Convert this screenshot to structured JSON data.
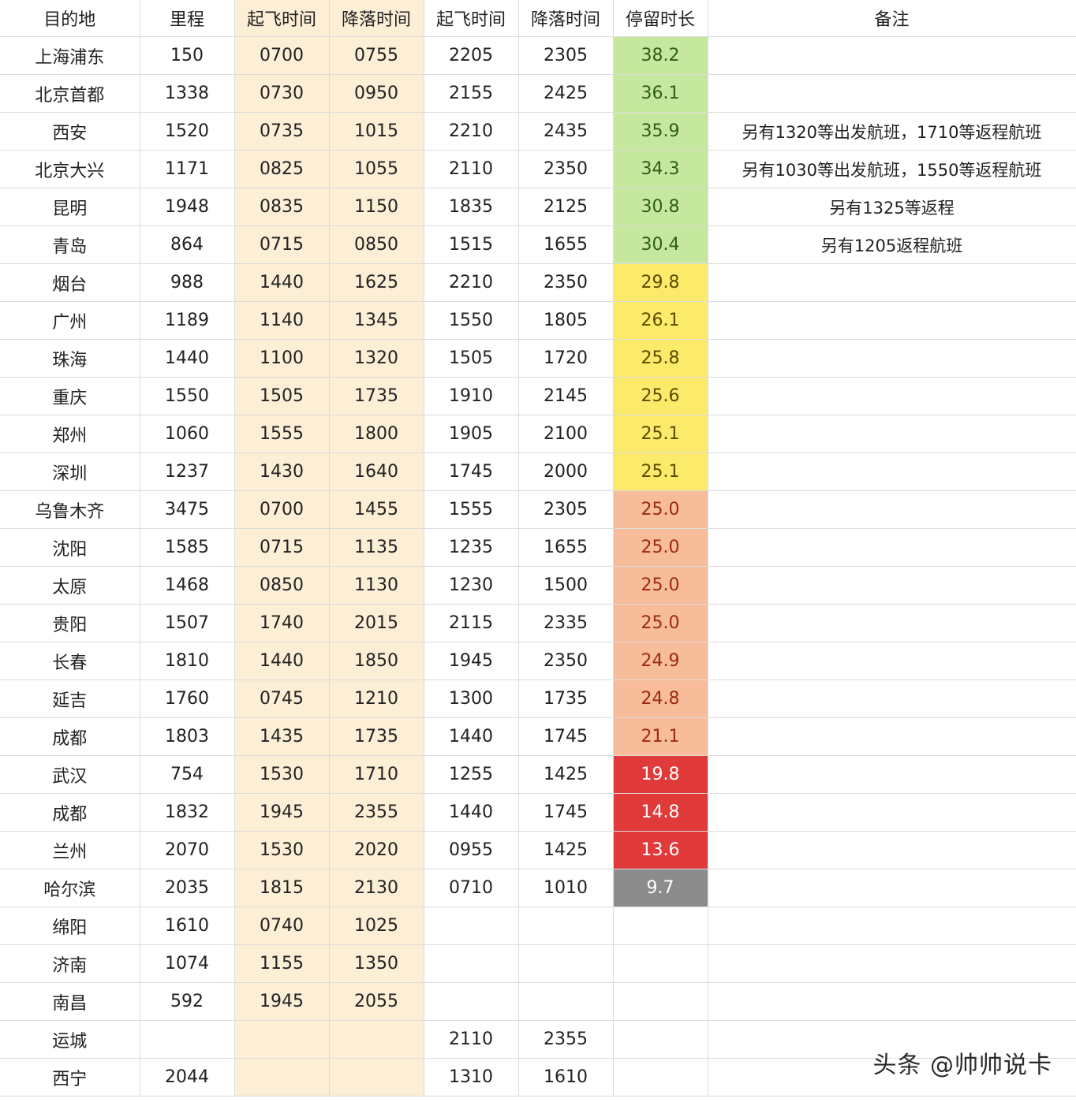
{
  "colors": {
    "green": "#c5e79e",
    "yellow": "#fcea6a",
    "orange": "#f7bd9b",
    "red": "#e03a3a",
    "gray": "#8c8c8c",
    "shade": "#fdeed6"
  },
  "headers": [
    "目的地",
    "里程",
    "起飞时间",
    "降落时间",
    "起飞时间",
    "降落时间",
    "停留时长",
    "备注"
  ],
  "rows": [
    {
      "dest": "上海浦东",
      "miles": "150",
      "dep1": "0700",
      "arr1": "0755",
      "dep2": "2205",
      "arr2": "2305",
      "stay": "38.2",
      "level": "green",
      "note": ""
    },
    {
      "dest": "北京首都",
      "miles": "1338",
      "dep1": "0730",
      "arr1": "0950",
      "dep2": "2155",
      "arr2": "2425",
      "stay": "36.1",
      "level": "green",
      "note": ""
    },
    {
      "dest": "西安",
      "miles": "1520",
      "dep1": "0735",
      "arr1": "1015",
      "dep2": "2210",
      "arr2": "2435",
      "stay": "35.9",
      "level": "green",
      "note": "另有1320等出发航班，1710等返程航班"
    },
    {
      "dest": "北京大兴",
      "miles": "1171",
      "dep1": "0825",
      "arr1": "1055",
      "dep2": "2110",
      "arr2": "2350",
      "stay": "34.3",
      "level": "green",
      "note": "另有1030等出发航班，1550等返程航班"
    },
    {
      "dest": "昆明",
      "miles": "1948",
      "dep1": "0835",
      "arr1": "1150",
      "dep2": "1835",
      "arr2": "2125",
      "stay": "30.8",
      "level": "green",
      "note": "另有1325等返程"
    },
    {
      "dest": "青岛",
      "miles": "864",
      "dep1": "0715",
      "arr1": "0850",
      "dep2": "1515",
      "arr2": "1655",
      "stay": "30.4",
      "level": "green",
      "note": "另有1205返程航班"
    },
    {
      "dest": "烟台",
      "miles": "988",
      "dep1": "1440",
      "arr1": "1625",
      "dep2": "2210",
      "arr2": "2350",
      "stay": "29.8",
      "level": "yellow",
      "note": ""
    },
    {
      "dest": "广州",
      "miles": "1189",
      "dep1": "1140",
      "arr1": "1345",
      "dep2": "1550",
      "arr2": "1805",
      "stay": "26.1",
      "level": "yellow",
      "note": ""
    },
    {
      "dest": "珠海",
      "miles": "1440",
      "dep1": "1100",
      "arr1": "1320",
      "dep2": "1505",
      "arr2": "1720",
      "stay": "25.8",
      "level": "yellow",
      "note": ""
    },
    {
      "dest": "重庆",
      "miles": "1550",
      "dep1": "1505",
      "arr1": "1735",
      "dep2": "1910",
      "arr2": "2145",
      "stay": "25.6",
      "level": "yellow",
      "note": ""
    },
    {
      "dest": "郑州",
      "miles": "1060",
      "dep1": "1555",
      "arr1": "1800",
      "dep2": "1905",
      "arr2": "2100",
      "stay": "25.1",
      "level": "yellow",
      "note": ""
    },
    {
      "dest": "深圳",
      "miles": "1237",
      "dep1": "1430",
      "arr1": "1640",
      "dep2": "1745",
      "arr2": "2000",
      "stay": "25.1",
      "level": "yellow",
      "note": ""
    },
    {
      "dest": "乌鲁木齐",
      "miles": "3475",
      "dep1": "0700",
      "arr1": "1455",
      "dep2": "1555",
      "arr2": "2305",
      "stay": "25.0",
      "level": "orange",
      "note": ""
    },
    {
      "dest": "沈阳",
      "miles": "1585",
      "dep1": "0715",
      "arr1": "1135",
      "dep2": "1235",
      "arr2": "1655",
      "stay": "25.0",
      "level": "orange",
      "note": ""
    },
    {
      "dest": "太原",
      "miles": "1468",
      "dep1": "0850",
      "arr1": "1130",
      "dep2": "1230",
      "arr2": "1500",
      "stay": "25.0",
      "level": "orange",
      "note": ""
    },
    {
      "dest": "贵阳",
      "miles": "1507",
      "dep1": "1740",
      "arr1": "2015",
      "dep2": "2115",
      "arr2": "2335",
      "stay": "25.0",
      "level": "orange",
      "note": ""
    },
    {
      "dest": "长春",
      "miles": "1810",
      "dep1": "1440",
      "arr1": "1850",
      "dep2": "1945",
      "arr2": "2350",
      "stay": "24.9",
      "level": "orange",
      "note": ""
    },
    {
      "dest": "延吉",
      "miles": "1760",
      "dep1": "0745",
      "arr1": "1210",
      "dep2": "1300",
      "arr2": "1735",
      "stay": "24.8",
      "level": "orange",
      "note": ""
    },
    {
      "dest": "成都",
      "miles": "1803",
      "dep1": "1435",
      "arr1": "1735",
      "dep2": "1440",
      "arr2": "1745",
      "stay": "21.1",
      "level": "orange",
      "note": ""
    },
    {
      "dest": "武汉",
      "miles": "754",
      "dep1": "1530",
      "arr1": "1710",
      "dep2": "1255",
      "arr2": "1425",
      "stay": "19.8",
      "level": "red",
      "note": ""
    },
    {
      "dest": "成都",
      "miles": "1832",
      "dep1": "1945",
      "arr1": "2355",
      "dep2": "1440",
      "arr2": "1745",
      "stay": "14.8",
      "level": "red",
      "note": ""
    },
    {
      "dest": "兰州",
      "miles": "2070",
      "dep1": "1530",
      "arr1": "2020",
      "dep2": "0955",
      "arr2": "1425",
      "stay": "13.6",
      "level": "red",
      "note": ""
    },
    {
      "dest": "哈尔滨",
      "miles": "2035",
      "dep1": "1815",
      "arr1": "2130",
      "dep2": "0710",
      "arr2": "1010",
      "stay": "9.7",
      "level": "gray",
      "note": ""
    },
    {
      "dest": "绵阳",
      "miles": "1610",
      "dep1": "0740",
      "arr1": "1025",
      "dep2": "",
      "arr2": "",
      "stay": "",
      "level": "",
      "note": ""
    },
    {
      "dest": "济南",
      "miles": "1074",
      "dep1": "1155",
      "arr1": "1350",
      "dep2": "",
      "arr2": "",
      "stay": "",
      "level": "",
      "note": ""
    },
    {
      "dest": "南昌",
      "miles": "592",
      "dep1": "1945",
      "arr1": "2055",
      "dep2": "",
      "arr2": "",
      "stay": "",
      "level": "",
      "note": ""
    },
    {
      "dest": "运城",
      "miles": "",
      "dep1": "",
      "arr1": "",
      "dep2": "2110",
      "arr2": "2355",
      "stay": "",
      "level": "",
      "note": ""
    },
    {
      "dest": "西宁",
      "miles": "2044",
      "dep1": "",
      "arr1": "",
      "dep2": "1310",
      "arr2": "1610",
      "stay": "",
      "level": "",
      "note": ""
    }
  ],
  "watermark": "头条 @帅帅说卡"
}
